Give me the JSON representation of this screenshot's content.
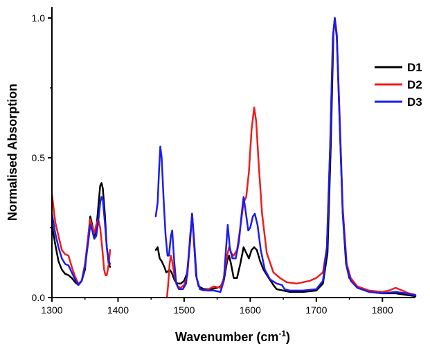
{
  "chart_data": {
    "type": "line",
    "title": "",
    "xlabel": "Wavenumber (cm",
    "xlabel_sup": "-1",
    "xlabel_end": ")",
    "ylabel": "Normalised Absorption",
    "xlim": [
      1300,
      1850
    ],
    "ylim": [
      0,
      1.0
    ],
    "x_ticks": [
      1300,
      1400,
      1500,
      1600,
      1700,
      1800
    ],
    "x_tick_labels": [
      "1300",
      "1400",
      "1500",
      "1600",
      "1700",
      "1800"
    ],
    "y_ticks": [
      0,
      0.5,
      1.0
    ],
    "y_tick_labels": [
      "0.0",
      "0.5",
      "1.0"
    ],
    "grid": false,
    "legend_position": "right",
    "series": [
      {
        "name": "D1",
        "color": "#000000",
        "segments": [
          [
            [
              1300,
              0.26
            ],
            [
              1305,
              0.19
            ],
            [
              1310,
              0.13
            ],
            [
              1315,
              0.1
            ],
            [
              1320,
              0.085
            ],
            [
              1325,
              0.08
            ],
            [
              1330,
              0.07
            ],
            [
              1335,
              0.055
            ],
            [
              1340,
              0.045
            ],
            [
              1345,
              0.06
            ],
            [
              1350,
              0.1
            ],
            [
              1355,
              0.22
            ],
            [
              1358,
              0.29
            ],
            [
              1361,
              0.26
            ],
            [
              1364,
              0.22
            ],
            [
              1367,
              0.24
            ],
            [
              1370,
              0.32
            ],
            [
              1373,
              0.4
            ],
            [
              1375,
              0.41
            ],
            [
              1377,
              0.39
            ],
            [
              1380,
              0.3
            ],
            [
              1383,
              0.18
            ],
            [
              1386,
              0.12
            ],
            [
              1388,
              0.11
            ]
          ],
          [
            [
              1457,
              0.17
            ],
            [
              1460,
              0.18
            ],
            [
              1463,
              0.14
            ],
            [
              1466,
              0.13
            ],
            [
              1470,
              0.11
            ],
            [
              1473,
              0.09
            ],
            [
              1476,
              0.095
            ],
            [
              1478,
              0.1
            ],
            [
              1481,
              0.09
            ],
            [
              1486,
              0.06
            ],
            [
              1490,
              0.05
            ],
            [
              1495,
              0.05
            ],
            [
              1500,
              0.06
            ],
            [
              1505,
              0.09
            ],
            [
              1509,
              0.2
            ],
            [
              1512,
              0.3
            ],
            [
              1515,
              0.2
            ],
            [
              1518,
              0.08
            ],
            [
              1522,
              0.04
            ],
            [
              1530,
              0.03
            ],
            [
              1540,
              0.03
            ],
            [
              1550,
              0.035
            ],
            [
              1555,
              0.04
            ],
            [
              1560,
              0.06
            ],
            [
              1565,
              0.13
            ],
            [
              1568,
              0.15
            ],
            [
              1571,
              0.12
            ],
            [
              1575,
              0.07
            ],
            [
              1580,
              0.07
            ],
            [
              1585,
              0.12
            ],
            [
              1590,
              0.18
            ],
            [
              1594,
              0.16
            ],
            [
              1598,
              0.14
            ],
            [
              1602,
              0.17
            ],
            [
              1606,
              0.18
            ],
            [
              1610,
              0.17
            ],
            [
              1615,
              0.13
            ],
            [
              1620,
              0.1
            ],
            [
              1628,
              0.07
            ],
            [
              1635,
              0.045
            ],
            [
              1640,
              0.03
            ],
            [
              1650,
              0.025
            ],
            [
              1660,
              0.02
            ],
            [
              1680,
              0.02
            ],
            [
              1700,
              0.025
            ],
            [
              1710,
              0.05
            ],
            [
              1717,
              0.16
            ],
            [
              1722,
              0.55
            ],
            [
              1726,
              0.95
            ],
            [
              1728,
              1.0
            ],
            [
              1731,
              0.93
            ],
            [
              1735,
              0.65
            ],
            [
              1740,
              0.3
            ],
            [
              1745,
              0.12
            ],
            [
              1750,
              0.07
            ],
            [
              1760,
              0.04
            ],
            [
              1780,
              0.02
            ],
            [
              1800,
              0.015
            ],
            [
              1820,
              0.015
            ],
            [
              1835,
              0.01
            ],
            [
              1850,
              0.005
            ]
          ]
        ]
      },
      {
        "name": "D2",
        "color": "#ee1c1c",
        "segments": [
          [
            [
              1300,
              0.37
            ],
            [
              1305,
              0.27
            ],
            [
              1310,
              0.22
            ],
            [
              1315,
              0.17
            ],
            [
              1320,
              0.155
            ],
            [
              1325,
              0.15
            ],
            [
              1330,
              0.11
            ],
            [
              1335,
              0.075
            ],
            [
              1340,
              0.05
            ],
            [
              1345,
              0.06
            ],
            [
              1350,
              0.12
            ],
            [
              1355,
              0.22
            ],
            [
              1358,
              0.28
            ],
            [
              1361,
              0.25
            ],
            [
              1364,
              0.23
            ],
            [
              1367,
              0.26
            ],
            [
              1370,
              0.28
            ],
            [
              1373,
              0.25
            ],
            [
              1376,
              0.18
            ],
            [
              1379,
              0.1
            ],
            [
              1381,
              0.08
            ],
            [
              1383,
              0.08
            ],
            [
              1386,
              0.12
            ],
            [
              1388,
              0.17
            ]
          ],
          [
            [
              1474,
              0.0
            ],
            [
              1476,
              0.05
            ],
            [
              1478,
              0.12
            ],
            [
              1480,
              0.15
            ],
            [
              1482,
              0.13
            ],
            [
              1486,
              0.07
            ],
            [
              1490,
              0.04
            ],
            [
              1495,
              0.035
            ],
            [
              1500,
              0.045
            ],
            [
              1505,
              0.08
            ],
            [
              1509,
              0.22
            ],
            [
              1512,
              0.29
            ],
            [
              1515,
              0.19
            ],
            [
              1519,
              0.07
            ],
            [
              1524,
              0.03
            ],
            [
              1530,
              0.025
            ],
            [
              1537,
              0.03
            ],
            [
              1545,
              0.04
            ],
            [
              1555,
              0.035
            ],
            [
              1560,
              0.07
            ],
            [
              1565,
              0.15
            ],
            [
              1568,
              0.18
            ],
            [
              1571,
              0.16
            ],
            [
              1575,
              0.15
            ],
            [
              1580,
              0.17
            ],
            [
              1585,
              0.25
            ],
            [
              1590,
              0.34
            ],
            [
              1594,
              0.36
            ],
            [
              1598,
              0.45
            ],
            [
              1602,
              0.6
            ],
            [
              1606,
              0.68
            ],
            [
              1609,
              0.63
            ],
            [
              1613,
              0.47
            ],
            [
              1618,
              0.3
            ],
            [
              1625,
              0.16
            ],
            [
              1635,
              0.09
            ],
            [
              1645,
              0.07
            ],
            [
              1655,
              0.055
            ],
            [
              1670,
              0.05
            ],
            [
              1690,
              0.06
            ],
            [
              1700,
              0.07
            ],
            [
              1710,
              0.09
            ],
            [
              1716,
              0.18
            ],
            [
              1721,
              0.55
            ],
            [
              1725,
              0.92
            ],
            [
              1728,
              1.0
            ],
            [
              1731,
              0.94
            ],
            [
              1735,
              0.67
            ],
            [
              1740,
              0.32
            ],
            [
              1746,
              0.12
            ],
            [
              1752,
              0.07
            ],
            [
              1762,
              0.04
            ],
            [
              1780,
              0.025
            ],
            [
              1800,
              0.02
            ],
            [
              1810,
              0.025
            ],
            [
              1820,
              0.035
            ],
            [
              1830,
              0.025
            ],
            [
              1840,
              0.015
            ],
            [
              1850,
              0.01
            ]
          ]
        ]
      },
      {
        "name": "D3",
        "color": "#1c1cee",
        "segments": [
          [
            [
              1300,
              0.3
            ],
            [
              1305,
              0.23
            ],
            [
              1310,
              0.18
            ],
            [
              1315,
              0.14
            ],
            [
              1320,
              0.12
            ],
            [
              1325,
              0.115
            ],
            [
              1330,
              0.09
            ],
            [
              1335,
              0.065
            ],
            [
              1340,
              0.045
            ],
            [
              1345,
              0.06
            ],
            [
              1350,
              0.11
            ],
            [
              1355,
              0.2
            ],
            [
              1358,
              0.26
            ],
            [
              1361,
              0.24
            ],
            [
              1364,
              0.21
            ],
            [
              1367,
              0.22
            ],
            [
              1370,
              0.27
            ],
            [
              1373,
              0.34
            ],
            [
              1375,
              0.36
            ],
            [
              1377,
              0.35
            ],
            [
              1380,
              0.27
            ],
            [
              1383,
              0.18
            ],
            [
              1386,
              0.13
            ],
            [
              1388,
              0.12
            ]
          ],
          [
            [
              1457,
              0.29
            ],
            [
              1460,
              0.34
            ],
            [
              1462,
              0.45
            ],
            [
              1464,
              0.54
            ],
            [
              1466,
              0.5
            ],
            [
              1469,
              0.35
            ],
            [
              1472,
              0.22
            ],
            [
              1475,
              0.15
            ],
            [
              1477,
              0.15
            ],
            [
              1480,
              0.22
            ],
            [
              1482,
              0.24
            ],
            [
              1485,
              0.13
            ],
            [
              1488,
              0.05
            ],
            [
              1492,
              0.03
            ],
            [
              1498,
              0.03
            ],
            [
              1503,
              0.05
            ],
            [
              1508,
              0.18
            ],
            [
              1512,
              0.3
            ],
            [
              1515,
              0.21
            ],
            [
              1519,
              0.07
            ],
            [
              1524,
              0.03
            ],
            [
              1535,
              0.025
            ],
            [
              1545,
              0.025
            ],
            [
              1555,
              0.02
            ],
            [
              1560,
              0.06
            ],
            [
              1563,
              0.16
            ],
            [
              1566,
              0.26
            ],
            [
              1569,
              0.18
            ],
            [
              1573,
              0.14
            ],
            [
              1578,
              0.14
            ],
            [
              1583,
              0.2
            ],
            [
              1587,
              0.3
            ],
            [
              1590,
              0.36
            ],
            [
              1593,
              0.31
            ],
            [
              1597,
              0.24
            ],
            [
              1600,
              0.25
            ],
            [
              1604,
              0.29
            ],
            [
              1607,
              0.3
            ],
            [
              1611,
              0.26
            ],
            [
              1616,
              0.17
            ],
            [
              1622,
              0.1
            ],
            [
              1630,
              0.065
            ],
            [
              1640,
              0.05
            ],
            [
              1648,
              0.045
            ],
            [
              1652,
              0.03
            ],
            [
              1660,
              0.025
            ],
            [
              1680,
              0.025
            ],
            [
              1700,
              0.03
            ],
            [
              1710,
              0.06
            ],
            [
              1716,
              0.18
            ],
            [
              1721,
              0.55
            ],
            [
              1725,
              0.93
            ],
            [
              1728,
              1.0
            ],
            [
              1731,
              0.94
            ],
            [
              1735,
              0.66
            ],
            [
              1740,
              0.3
            ],
            [
              1746,
              0.11
            ],
            [
              1752,
              0.06
            ],
            [
              1762,
              0.035
            ],
            [
              1780,
              0.02
            ],
            [
              1800,
              0.015
            ],
            [
              1820,
              0.02
            ],
            [
              1835,
              0.015
            ],
            [
              1850,
              0.008
            ]
          ]
        ]
      }
    ]
  }
}
